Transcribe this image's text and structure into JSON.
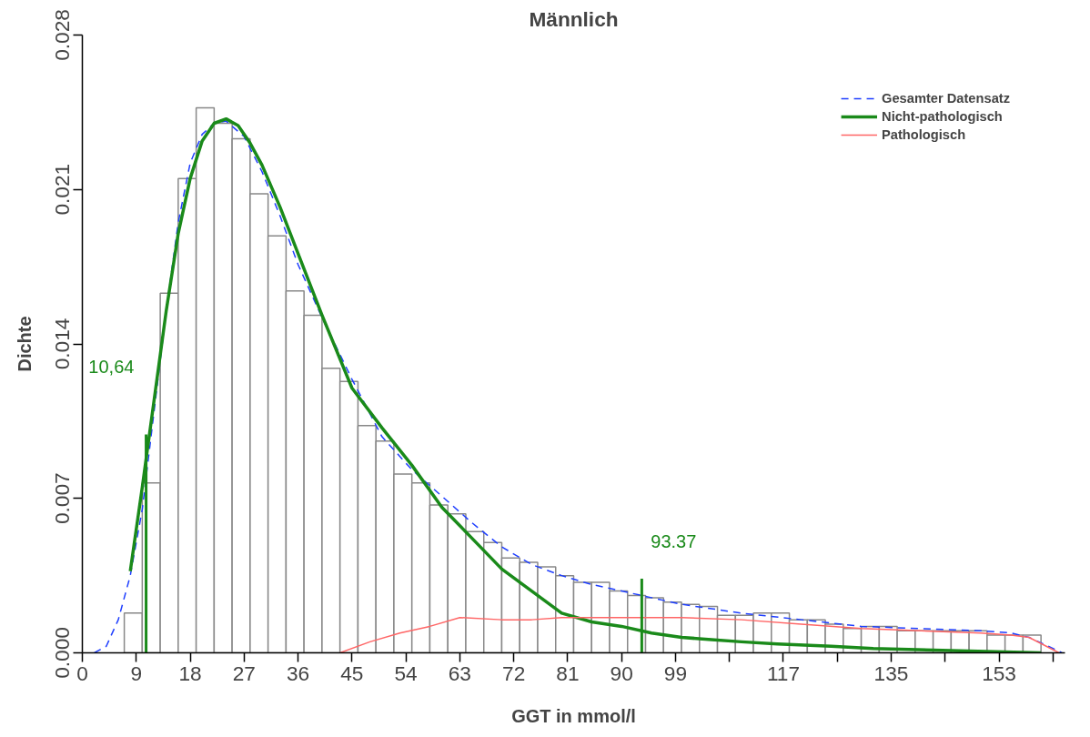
{
  "chart_data": {
    "type": "histogram",
    "title": "Männlich",
    "xlabel": "GGT in mmol/l",
    "ylabel": "Dichte",
    "bins": [
      7,
      10,
      13,
      16,
      19,
      22,
      25,
      28,
      31,
      34,
      37,
      40,
      43,
      46,
      49,
      52,
      55,
      58,
      61,
      64,
      67,
      70,
      73,
      76,
      79,
      82,
      85,
      88,
      91,
      94,
      97,
      100,
      103,
      106,
      109,
      112,
      115,
      118,
      121,
      124,
      127,
      130,
      133,
      136,
      139,
      142,
      145,
      148,
      151,
      154,
      157,
      160
    ],
    "values": [
      0.0018,
      0.0077,
      0.0163,
      0.0215,
      0.0247,
      0.024,
      0.0233,
      0.0208,
      0.0189,
      0.0164,
      0.0153,
      0.0129,
      0.0123,
      0.0103,
      0.0096,
      0.0081,
      0.0077,
      0.0067,
      0.0063,
      0.0055,
      0.005,
      0.0043,
      0.0041,
      0.0039,
      0.0035,
      0.0032,
      0.0032,
      0.0028,
      0.0026,
      0.0025,
      0.0023,
      0.0022,
      0.0021,
      0.0017,
      0.0017,
      0.0018,
      0.0018,
      0.0015,
      0.0015,
      0.0013,
      0.0011,
      0.0012,
      0.0012,
      0.001,
      0.001,
      0.001,
      0.001,
      0.001,
      0.0008,
      0.0008,
      0.0008
    ],
    "color": "#888888",
    "series": [
      {
        "name": "Gesamter Datensatz",
        "type": "line",
        "line_style": "dashed",
        "color": "#1f3fff",
        "x": [
          2,
          4,
          6,
          8,
          10,
          12,
          14,
          16,
          18,
          20,
          22,
          24,
          27,
          30,
          33,
          36,
          40,
          45,
          50,
          55,
          60,
          65,
          70,
          75,
          80,
          85,
          90,
          95,
          100,
          110,
          120,
          130,
          140,
          150,
          155,
          158,
          162,
          163.5
        ],
        "values": [
          0,
          0.0003,
          0.0015,
          0.0035,
          0.0065,
          0.011,
          0.0155,
          0.0195,
          0.0222,
          0.0235,
          0.024,
          0.0241,
          0.0234,
          0.0218,
          0.0198,
          0.0176,
          0.0152,
          0.0124,
          0.0098,
          0.0083,
          0.0071,
          0.0059,
          0.0048,
          0.004,
          0.0035,
          0.0031,
          0.0028,
          0.0025,
          0.0022,
          0.0018,
          0.0015,
          0.0012,
          0.0011,
          0.001,
          0.0009,
          0.0007,
          0.0002,
          0
        ]
      },
      {
        "name": "Nicht-pathologisch",
        "type": "line",
        "line_style": "solid",
        "color": "#1a8a1a",
        "x": [
          8,
          10,
          12,
          14,
          16,
          18,
          20,
          22,
          24,
          26,
          28,
          30,
          33,
          36,
          40,
          45,
          50,
          55,
          60,
          65,
          70,
          75,
          80,
          85,
          90,
          95,
          100,
          105,
          110,
          116,
          125,
          132,
          145,
          160
        ],
        "values": [
          0.0037,
          0.0075,
          0.0115,
          0.0155,
          0.019,
          0.0215,
          0.0232,
          0.024,
          0.0242,
          0.0239,
          0.0231,
          0.0221,
          0.0202,
          0.0181,
          0.0153,
          0.012,
          0.0102,
          0.0085,
          0.0066,
          0.0052,
          0.0038,
          0.0028,
          0.0018,
          0.0014,
          0.0012,
          0.0009,
          0.0007,
          0.0006,
          0.0005,
          0.0004,
          0.0003,
          0.0002,
          0.0001,
          0
        ]
      },
      {
        "name": "Pathologisch",
        "type": "line",
        "line_style": "solid",
        "color": "#ff6666",
        "x": [
          43,
          48,
          53,
          58,
          63,
          70,
          75,
          80,
          90,
          100,
          110,
          120,
          130,
          140,
          150,
          155,
          158,
          163
        ],
        "values": [
          0,
          0.0005,
          0.0009,
          0.0012,
          0.0016,
          0.0015,
          0.0015,
          0.0016,
          0.0016,
          0.0016,
          0.0015,
          0.0013,
          0.0011,
          0.001,
          0.0009,
          0.0008,
          0.0007,
          0
        ]
      }
    ],
    "ref_lines": [
      {
        "axis": "x",
        "value": 10.64,
        "label": "10,64",
        "color": "#1a8a1a"
      },
      {
        "axis": "x",
        "value": 93.37,
        "label": "93.37",
        "color": "#1a8a1a"
      }
    ],
    "xlim": [
      0,
      164
    ],
    "ylim": [
      0,
      0.028
    ],
    "xticks": [
      0,
      9,
      18,
      27,
      36,
      45,
      54,
      63,
      72,
      81,
      90,
      99,
      {
        "value": 108,
        "label": null
      },
      117,
      {
        "value": 126,
        "label": null
      },
      135,
      {
        "value": 144,
        "label": null
      },
      153,
      {
        "value": 162,
        "label": null
      }
    ],
    "yticks": [
      {
        "value": 0,
        "label": "0.000"
      },
      {
        "value": 0.007,
        "label": "0.007"
      },
      {
        "value": 0.014,
        "label": "0.014"
      },
      {
        "value": 0.021,
        "label": "0.021"
      },
      {
        "value": 0.028,
        "label": "0.028"
      }
    ],
    "grid": false,
    "legend": "top right"
  }
}
